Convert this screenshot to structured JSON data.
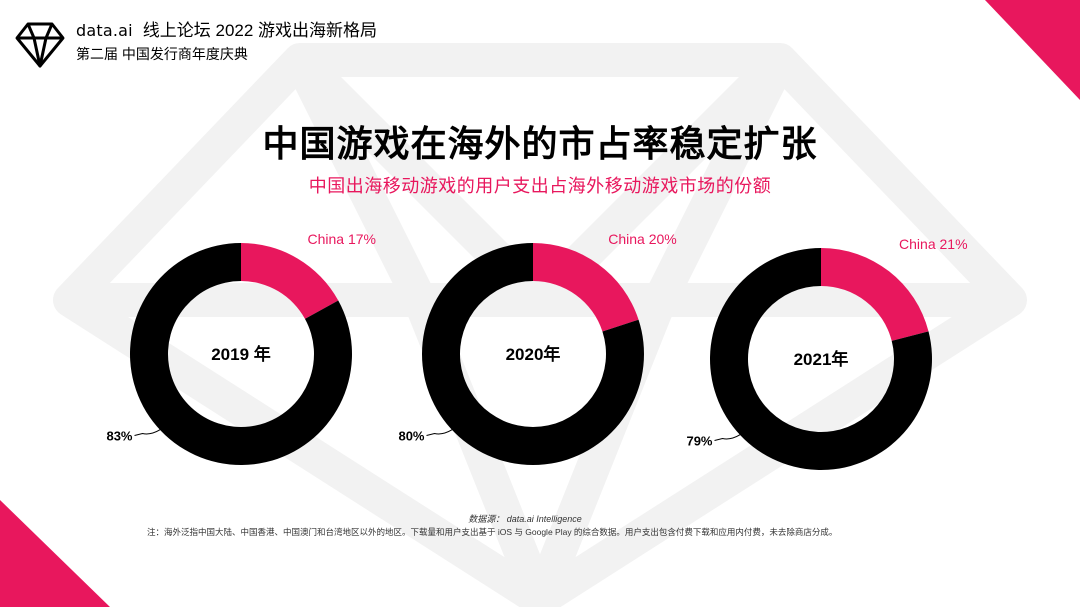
{
  "header": {
    "brand": "data.ai",
    "forum_title": "线上论坛  2022 游戏出海新格局",
    "event_subtitle": "第二届 中国发行商年度庆典"
  },
  "slide": {
    "title": "中国游戏在海外的市占率稳定扩张",
    "subtitle": "中国出海移动游戏的用户支出占海外移动游戏市场的份额"
  },
  "chart_data": [
    {
      "type": "pie",
      "center_label": "2019 年",
      "categories": [
        "China",
        ""
      ],
      "values": [
        17,
        83
      ],
      "labels": [
        "China 17%",
        "83%"
      ],
      "colors": [
        "#E8175D",
        "#000000"
      ]
    },
    {
      "type": "pie",
      "center_label": "2020年",
      "categories": [
        "China",
        ""
      ],
      "values": [
        20,
        80
      ],
      "labels": [
        "China 20%",
        "80%"
      ],
      "colors": [
        "#E8175D",
        "#000000"
      ]
    },
    {
      "type": "pie",
      "center_label": "2021年",
      "categories": [
        "China",
        ""
      ],
      "values": [
        21,
        79
      ],
      "labels": [
        "China 21%",
        "79%"
      ],
      "colors": [
        "#E8175D",
        "#000000"
      ]
    }
  ],
  "footer": {
    "source": "数据源： data.ai Intelligence",
    "note": "注：海外泛指中国大陆、中国香港、中国澳门和台湾地区以外的地区。下载量和用户支出基于 iOS 与 Google Play 的综合数据。用户支出包含付费下载和应用内付费，未去除商店分成。"
  },
  "colors": {
    "accent": "#E8175D",
    "dark": "#000000",
    "watermark": "#F3F3F3"
  }
}
